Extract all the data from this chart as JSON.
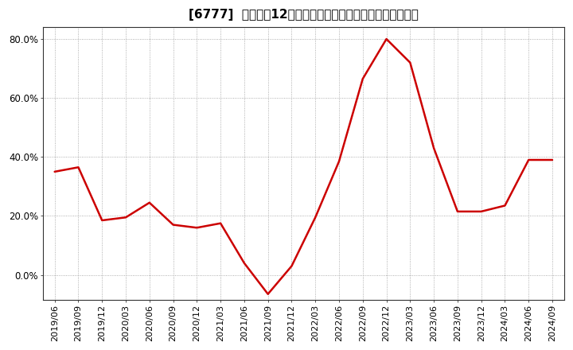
{
  "title": "[6777]  売上高の12か月移動合計の対前年同期増減率の推移",
  "line_color": "#cc0000",
  "background_color": "#ffffff",
  "plot_bg_color": "#ffffff",
  "grid_color": "#999999",
  "x_labels": [
    "2019/06",
    "2019/09",
    "2019/12",
    "2020/03",
    "2020/06",
    "2020/09",
    "2020/12",
    "2021/03",
    "2021/06",
    "2021/09",
    "2021/12",
    "2022/03",
    "2022/06",
    "2022/09",
    "2022/12",
    "2023/03",
    "2023/06",
    "2023/09",
    "2023/12",
    "2024/03",
    "2024/06",
    "2024/09"
  ],
  "y_values": [
    0.35,
    0.365,
    0.185,
    0.195,
    0.245,
    0.17,
    0.16,
    0.175,
    0.04,
    -0.065,
    0.03,
    0.195,
    0.385,
    0.665,
    0.8,
    0.72,
    0.43,
    0.215,
    0.215,
    0.235,
    0.39,
    0.39
  ],
  "ylim": [
    -0.085,
    0.84
  ],
  "yticks": [
    0.0,
    0.2,
    0.4,
    0.6,
    0.8
  ],
  "ytick_labels": [
    "0.0%",
    "20.0%",
    "40.0%",
    "60.0%",
    "80.0%"
  ],
  "title_fontsize": 11,
  "tick_fontsize": 8.5,
  "line_width": 1.8
}
